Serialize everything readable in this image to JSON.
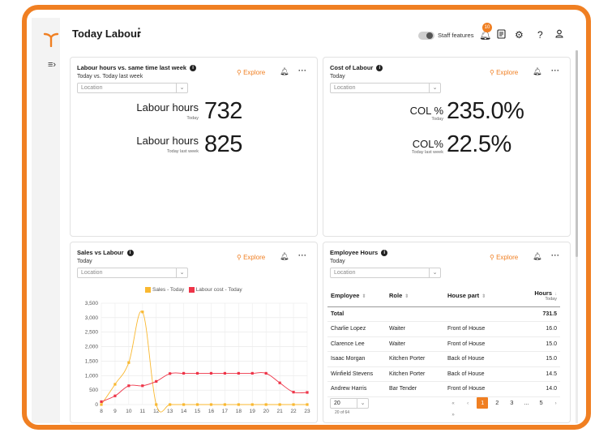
{
  "app": {
    "title": "Today Labour",
    "staff_features_label": "Staff features",
    "notification_count": "10",
    "accent_color": "#f07f22"
  },
  "header_icons": [
    "notification-bell-icon",
    "document-icon",
    "settings-icon",
    "help-icon",
    "user-icon"
  ],
  "cards": {
    "labour_hours": {
      "title": "Labour hours vs. same time last week",
      "subtitle": "Today vs. Today last week",
      "explore": "Explore",
      "location_placeholder": "Location",
      "kpis": [
        {
          "label": "Labour hours",
          "sublabel": "Today",
          "value": "732"
        },
        {
          "label": "Labour hours",
          "sublabel": "Today last week",
          "value": "825"
        }
      ]
    },
    "cost_of_labour": {
      "title": "Cost of Labour",
      "subtitle": "Today",
      "explore": "Explore",
      "location_placeholder": "Location",
      "kpis": [
        {
          "label": "COL %",
          "sublabel": "Today",
          "value": "235.0%"
        },
        {
          "label": "COL%",
          "sublabel": "Today last week",
          "value": "22.5%"
        }
      ]
    },
    "sales_vs_labour": {
      "title": "Sales vs Labour",
      "subtitle": "Today",
      "explore": "Explore",
      "location_placeholder": "Location"
    },
    "employee_hours": {
      "title": "Employee Hours",
      "subtitle": "Today",
      "explore": "Explore",
      "location_placeholder": "Location",
      "columns": [
        "Employee",
        "Role",
        "House part",
        "Hours"
      ],
      "hours_sub": "Today",
      "total": {
        "label": "Total",
        "value": "731.5"
      },
      "rows": [
        {
          "employee": "Charlie Lopez",
          "role": "Waiter",
          "house": "Front of House",
          "hours": "16.0"
        },
        {
          "employee": "Clarence Lee",
          "role": "Waiter",
          "house": "Front of House",
          "hours": "15.0"
        },
        {
          "employee": "Isaac Morgan",
          "role": "Kitchen Porter",
          "house": "Back of House",
          "hours": "15.0"
        },
        {
          "employee": "Winfield Stevens",
          "role": "Kitchen Porter",
          "house": "Back of House",
          "hours": "14.5"
        },
        {
          "employee": "Andrew Harris",
          "role": "Bar Tender",
          "house": "Front of House",
          "hours": "14.0"
        }
      ],
      "page_size": "20",
      "count_label": "20 of 64",
      "pages": [
        "1",
        "2",
        "3",
        "...",
        "5"
      ],
      "current_page": "1"
    }
  },
  "chart_data": {
    "type": "line",
    "title": "Sales vs Labour",
    "x": [
      8,
      9,
      10,
      11,
      12,
      13,
      14,
      15,
      16,
      17,
      18,
      19,
      20,
      21,
      22,
      23
    ],
    "series": [
      {
        "name": "Sales - Today",
        "color": "#f9b830",
        "values": [
          0,
          700,
          1450,
          3200,
          0,
          0,
          0,
          0,
          0,
          0,
          0,
          0,
          0,
          0,
          0,
          0
        ]
      },
      {
        "name": "Labour cost - Today",
        "color": "#ee3448",
        "values": [
          100,
          300,
          650,
          650,
          800,
          1070,
          1080,
          1080,
          1080,
          1080,
          1080,
          1080,
          1080,
          750,
          430,
          420
        ]
      }
    ],
    "ylim": [
      0,
      3500
    ],
    "yticks": [
      "3,500",
      "3,000",
      "2,500",
      "2,000",
      "1,500",
      "1,000",
      "500",
      "0"
    ],
    "ytick_values": [
      3500,
      3000,
      2500,
      2000,
      1500,
      1000,
      500,
      0
    ],
    "grid": true,
    "legend": "top"
  }
}
